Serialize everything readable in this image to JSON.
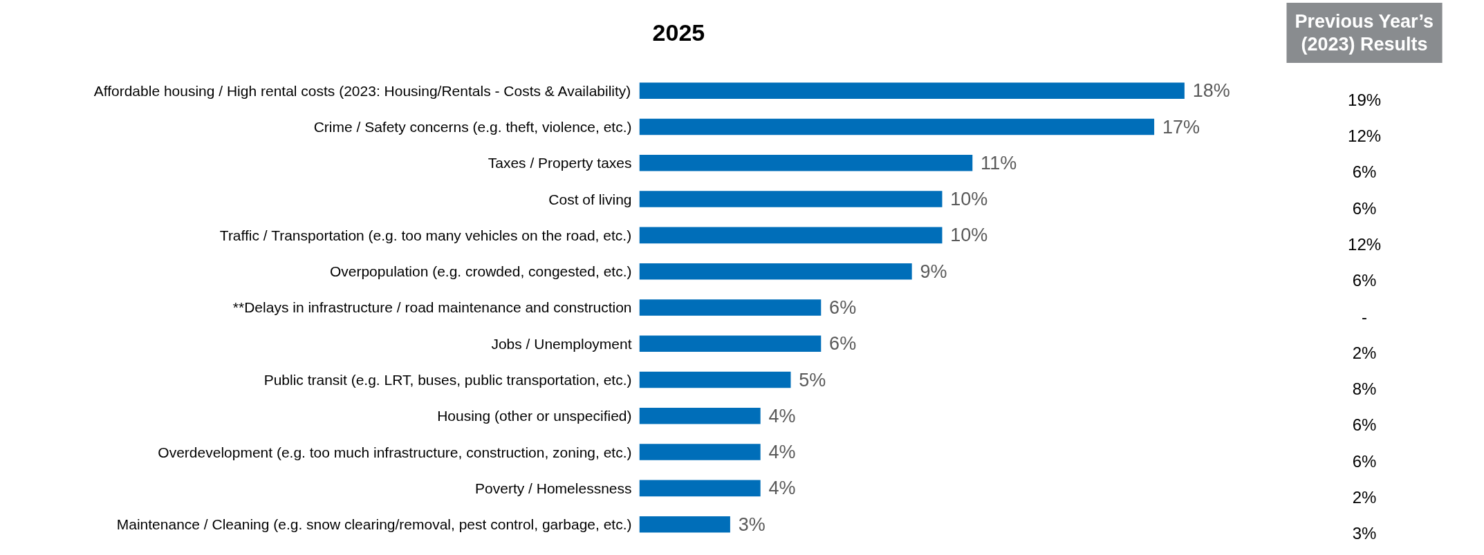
{
  "chart_data": {
    "type": "bar",
    "orientation": "horizontal",
    "title": "2025",
    "categories": [
      "Affordable housing / High rental costs (2023: Housing/Rentals - Costs & Availability)",
      "Crime / Safety concerns (e.g. theft, violence, etc.)",
      "Taxes / Property taxes",
      "Cost of living",
      "Traffic / Transportation (e.g. too many vehicles on the road, etc.)",
      "Overpopulation (e.g. crowded, congested, etc.)",
      "**Delays in infrastructure / road maintenance and construction",
      "Jobs / Unemployment",
      "Public transit (e.g. LRT, buses, public transportation, etc.)",
      "Housing (other or unspecified)",
      "Overdevelopment (e.g. too much infrastructure, construction, zoning, etc.)",
      "Poverty / Homelessness",
      "Maintenance / Cleaning (e.g. snow clearing/removal, pest control, garbage, etc.)"
    ],
    "values": [
      18,
      17,
      11,
      10,
      10,
      9,
      6,
      6,
      5,
      4,
      4,
      4,
      3
    ],
    "value_labels": [
      "18%",
      "17%",
      "11%",
      "10%",
      "10%",
      "9%",
      "6%",
      "6%",
      "5%",
      "4%",
      "4%",
      "4%",
      "3%"
    ],
    "color": "#006eb9",
    "annotations": [
      "Previous Year’s\n(2023) Results",
      "19%",
      "12%",
      "6%",
      "6%",
      "12%",
      "6%",
      "-",
      "2%",
      "8%",
      "6%",
      "6%",
      "2%",
      "3%"
    ],
    "grid": false
  }
}
